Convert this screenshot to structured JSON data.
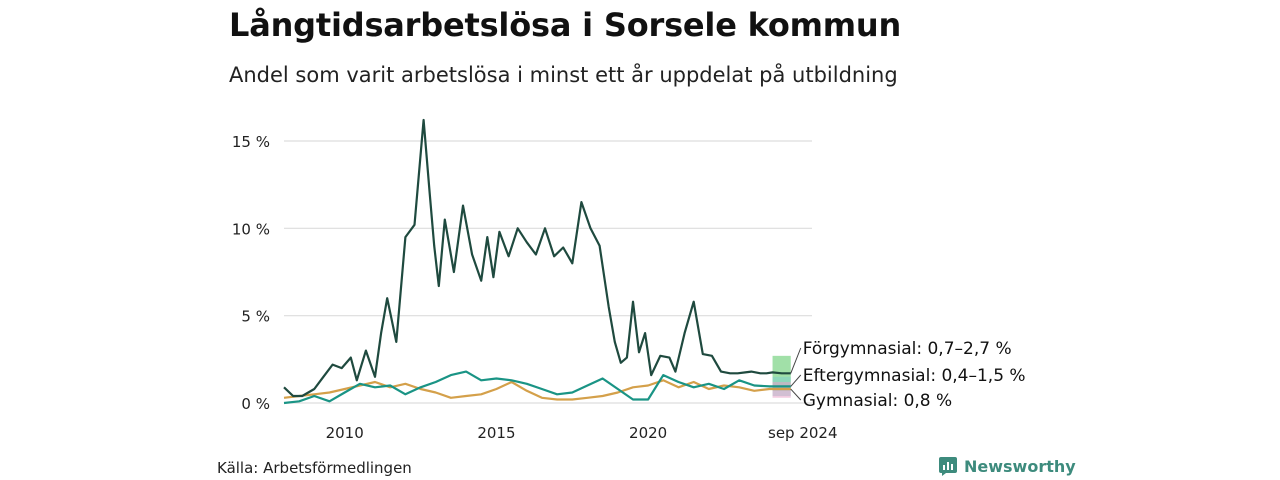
{
  "title": "Långtidsarbetslösa i Sorsele kommun",
  "subtitle": "Andel som varit arbetslösa i minst ett år uppdelat på utbildning",
  "source": "Källa: Arbetsförmedlingen",
  "brand": "Newsworthy",
  "colors": {
    "forgymnasial": "#1f4a3f",
    "eftergymnasial": "#1a9485",
    "gymnasial": "#d4a04a",
    "band_forgymnasial": "#6ecf7a",
    "band_eftergymnasial": "#7fd0c8",
    "band_gymnasial": "#e7a0c8",
    "grid": "#dddddd",
    "brand": "#3d8b7d"
  },
  "chart_data": {
    "type": "line",
    "title": "Långtidsarbetslösa i Sorsele kommun",
    "subtitle": "Andel som varit arbetslösa i minst ett år uppdelat på utbildning",
    "xlabel": "",
    "ylabel": "",
    "x_ticks": [
      "2010",
      "2015",
      "2020",
      "sep 2024"
    ],
    "y_ticks": [
      "0 %",
      "5 %",
      "10 %",
      "15 %"
    ],
    "xlim": [
      2008.0,
      2025.4
    ],
    "ylim": [
      0,
      16.5
    ],
    "grid": true,
    "series": [
      {
        "name": "Förgymnasial",
        "x": [
          2008.0,
          2008.3,
          2008.6,
          2009.0,
          2009.3,
          2009.6,
          2009.9,
          2010.2,
          2010.4,
          2010.7,
          2011.0,
          2011.2,
          2011.4,
          2011.7,
          2012.0,
          2012.3,
          2012.6,
          2012.8,
          2012.95,
          2013.1,
          2013.3,
          2013.6,
          2013.9,
          2014.2,
          2014.5,
          2014.7,
          2014.9,
          2015.1,
          2015.4,
          2015.7,
          2016.0,
          2016.3,
          2016.6,
          2016.9,
          2017.2,
          2017.5,
          2017.8,
          2018.1,
          2018.4,
          2018.7,
          2018.9,
          2019.1,
          2019.3,
          2019.5,
          2019.7,
          2019.9,
          2020.1,
          2020.4,
          2020.7,
          2020.9,
          2021.2,
          2021.5,
          2021.8,
          2022.1,
          2022.4,
          2022.7,
          2022.95,
          2023.2,
          2023.4,
          2023.7,
          2023.9,
          2024.1,
          2024.4,
          2024.7
        ],
        "values": [
          0.9,
          0.4,
          0.4,
          0.8,
          1.5,
          2.2,
          2.0,
          2.6,
          1.3,
          3.0,
          1.5,
          4.0,
          6.0,
          3.5,
          9.5,
          10.2,
          16.2,
          12.0,
          9.0,
          6.7,
          10.5,
          7.5,
          11.3,
          8.5,
          7.0,
          9.5,
          7.2,
          9.8,
          8.4,
          10.0,
          9.2,
          8.5,
          10.0,
          8.4,
          8.9,
          8.0,
          11.5,
          10.0,
          9.0,
          5.5,
          3.5,
          2.3,
          2.6,
          5.8,
          2.9,
          4.0,
          1.6,
          2.7,
          2.6,
          1.8,
          4.0,
          5.8,
          2.8,
          2.7,
          1.8,
          1.7,
          1.7,
          1.75,
          1.8,
          1.7,
          1.7,
          1.75,
          1.7,
          1.7
        ]
      },
      {
        "name": "Eftergymnasial",
        "x": [
          2008.0,
          2008.5,
          2009.0,
          2009.5,
          2010.0,
          2010.5,
          2011.0,
          2011.5,
          2012.0,
          2012.5,
          2013.0,
          2013.5,
          2014.0,
          2014.5,
          2015.0,
          2015.5,
          2016.0,
          2016.5,
          2017.0,
          2017.5,
          2018.0,
          2018.5,
          2019.0,
          2019.5,
          2020.0,
          2020.5,
          2021.0,
          2021.5,
          2022.0,
          2022.5,
          2023.0,
          2023.5,
          2024.0,
          2024.7
        ],
        "values": [
          0.0,
          0.1,
          0.4,
          0.1,
          0.6,
          1.1,
          0.9,
          1.0,
          0.5,
          0.9,
          1.2,
          1.6,
          1.8,
          1.3,
          1.4,
          1.3,
          1.1,
          0.8,
          0.5,
          0.6,
          1.0,
          1.4,
          0.8,
          0.2,
          0.2,
          1.6,
          1.2,
          0.9,
          1.1,
          0.8,
          1.3,
          1.0,
          0.95,
          0.95
        ]
      },
      {
        "name": "Gymnasial",
        "x": [
          2008.0,
          2008.5,
          2009.0,
          2009.5,
          2010.0,
          2010.5,
          2011.0,
          2011.5,
          2012.0,
          2012.5,
          2013.0,
          2013.5,
          2014.0,
          2014.5,
          2015.0,
          2015.5,
          2016.0,
          2016.5,
          2017.0,
          2017.5,
          2018.0,
          2018.5,
          2019.0,
          2019.5,
          2020.0,
          2020.5,
          2021.0,
          2021.5,
          2022.0,
          2022.5,
          2023.0,
          2023.5,
          2024.0,
          2024.7
        ],
        "values": [
          0.3,
          0.4,
          0.5,
          0.6,
          0.8,
          1.0,
          1.2,
          0.9,
          1.1,
          0.8,
          0.6,
          0.3,
          0.4,
          0.5,
          0.8,
          1.2,
          0.7,
          0.3,
          0.2,
          0.2,
          0.3,
          0.4,
          0.6,
          0.9,
          1.0,
          1.3,
          0.9,
          1.2,
          0.8,
          1.0,
          0.9,
          0.7,
          0.8,
          0.8
        ]
      }
    ],
    "ranges": [
      {
        "name": "Förgymnasial",
        "x_start": 2024.1,
        "x_end": 2024.7,
        "low": 0.7,
        "high": 2.7
      },
      {
        "name": "Eftergymnasial",
        "x_start": 2024.1,
        "x_end": 2024.7,
        "low": 0.4,
        "high": 1.5
      },
      {
        "name": "Gymnasial",
        "x_start": 2024.1,
        "x_end": 2024.7,
        "low": 0.3,
        "high": 1.2
      }
    ],
    "end_labels": [
      {
        "text": "Förgymnasial: 0,7–2,7 %",
        "value": 1.7
      },
      {
        "text": "Eftergymnasial: 0,4–1,5 %",
        "value": 0.95
      },
      {
        "text": "Gymnasial: 0,8 %",
        "value": 0.8
      }
    ]
  }
}
